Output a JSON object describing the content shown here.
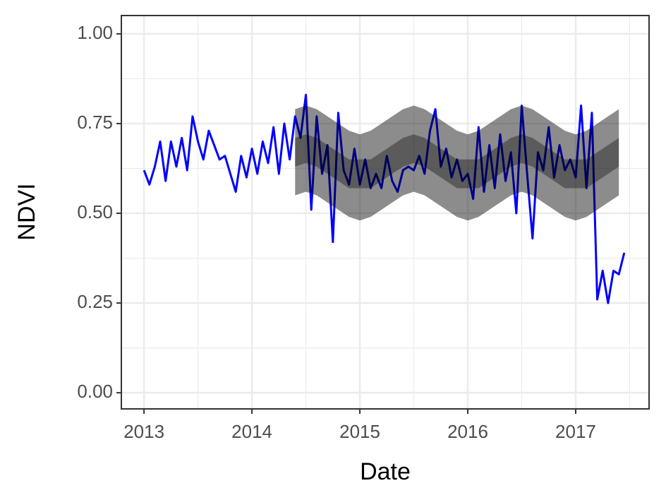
{
  "chart_data": {
    "type": "line",
    "x_label": "Date",
    "y_label": "NDVI",
    "xlim": [
      2012.79,
      2017.68
    ],
    "ylim": [
      -0.045,
      1.051
    ],
    "xticks": [
      2013,
      2014,
      2015,
      2016,
      2017
    ],
    "xminor": [
      2013.5,
      2014.5,
      2015.5,
      2016.5,
      2017.5
    ],
    "yticks": [
      {
        "value": 0,
        "label": "0.00"
      },
      {
        "value": 0.25,
        "label": "0.25"
      },
      {
        "value": 0.5,
        "label": "0.50"
      },
      {
        "value": 0.75,
        "label": "0.75"
      },
      {
        "value": 1,
        "label": "1.00"
      }
    ],
    "yminor": [
      0.125,
      0.375,
      0.625,
      0.875
    ],
    "grid": true,
    "x": [
      2013.0,
      2013.05,
      2013.1,
      2013.15,
      2013.2,
      2013.25,
      2013.3,
      2013.35,
      2013.4,
      2013.45,
      2013.5,
      2013.55,
      2013.6,
      2013.65,
      2013.7,
      2013.75,
      2013.8,
      2013.85,
      2013.9,
      2013.95,
      2014.0,
      2014.05,
      2014.1,
      2014.15,
      2014.2,
      2014.25,
      2014.3,
      2014.35,
      2014.4,
      2014.45,
      2014.5,
      2014.55,
      2014.6,
      2014.65,
      2014.7,
      2014.75,
      2014.8,
      2014.85,
      2014.9,
      2014.95,
      2015.0,
      2015.05,
      2015.1,
      2015.15,
      2015.2,
      2015.25,
      2015.3,
      2015.35,
      2015.4,
      2015.45,
      2015.5,
      2015.55,
      2015.6,
      2015.65,
      2015.7,
      2015.75,
      2015.8,
      2015.85,
      2015.9,
      2015.95,
      2016.0,
      2016.05,
      2016.1,
      2016.15,
      2016.2,
      2016.25,
      2016.3,
      2016.35,
      2016.4,
      2016.45,
      2016.5,
      2016.55,
      2016.6,
      2016.65,
      2016.7,
      2016.75,
      2016.8,
      2016.85,
      2016.9,
      2016.95,
      2017.0,
      2017.05,
      2017.1,
      2017.15,
      2017.2,
      2017.25,
      2017.3,
      2017.35,
      2017.4,
      2017.45
    ],
    "series": [
      {
        "color": "#0000ff",
        "values": [
          0.62,
          0.58,
          0.63,
          0.7,
          0.59,
          0.7,
          0.63,
          0.71,
          0.62,
          0.77,
          0.7,
          0.65,
          0.73,
          0.69,
          0.65,
          0.66,
          0.61,
          0.56,
          0.66,
          0.6,
          0.68,
          0.61,
          0.7,
          0.64,
          0.74,
          0.61,
          0.75,
          0.65,
          0.77,
          0.71,
          0.83,
          0.51,
          0.77,
          0.61,
          0.69,
          0.42,
          0.78,
          0.62,
          0.58,
          0.68,
          0.58,
          0.65,
          0.57,
          0.61,
          0.57,
          0.66,
          0.59,
          0.56,
          0.62,
          0.63,
          0.62,
          0.66,
          0.61,
          0.73,
          0.79,
          0.63,
          0.68,
          0.6,
          0.65,
          0.59,
          0.61,
          0.54,
          0.74,
          0.56,
          0.69,
          0.57,
          0.72,
          0.59,
          0.67,
          0.5,
          0.8,
          0.61,
          0.43,
          0.67,
          0.62,
          0.74,
          0.6,
          0.69,
          0.62,
          0.65,
          0.6,
          0.8,
          0.57,
          0.78,
          0.26,
          0.34,
          0.25,
          0.34,
          0.33,
          0.39
        ]
      }
    ],
    "bands": [
      {
        "color": "#000000",
        "opacity": 0.45,
        "x": [
          2014.4,
          2014.5,
          2014.6,
          2014.7,
          2014.8,
          2014.9,
          2015.0,
          2015.1,
          2015.2,
          2015.3,
          2015.4,
          2015.5,
          2015.6,
          2015.7,
          2015.8,
          2015.9,
          2016.0,
          2016.1,
          2016.2,
          2016.3,
          2016.4,
          2016.5,
          2016.6,
          2016.7,
          2016.8,
          2016.9,
          2017.0,
          2017.1,
          2017.2,
          2017.3,
          2017.4
        ],
        "upper": [
          0.79,
          0.8,
          0.79,
          0.77,
          0.75,
          0.73,
          0.72,
          0.73,
          0.75,
          0.77,
          0.79,
          0.8,
          0.79,
          0.77,
          0.75,
          0.73,
          0.72,
          0.73,
          0.75,
          0.77,
          0.79,
          0.8,
          0.79,
          0.77,
          0.75,
          0.73,
          0.72,
          0.73,
          0.75,
          0.77,
          0.79
        ],
        "lower": [
          0.55,
          0.56,
          0.55,
          0.53,
          0.51,
          0.49,
          0.48,
          0.49,
          0.51,
          0.53,
          0.55,
          0.56,
          0.55,
          0.53,
          0.51,
          0.49,
          0.48,
          0.49,
          0.51,
          0.53,
          0.55,
          0.56,
          0.55,
          0.53,
          0.51,
          0.49,
          0.48,
          0.49,
          0.51,
          0.53,
          0.55
        ]
      },
      {
        "color": "#000000",
        "opacity": 0.35,
        "x": [
          2014.4,
          2014.5,
          2014.6,
          2014.7,
          2014.8,
          2014.9,
          2015.0,
          2015.1,
          2015.2,
          2015.3,
          2015.4,
          2015.5,
          2015.6,
          2015.7,
          2015.8,
          2015.9,
          2016.0,
          2016.1,
          2016.2,
          2016.3,
          2016.4,
          2016.5,
          2016.6,
          2016.7,
          2016.8,
          2016.9,
          2017.0,
          2017.1,
          2017.2,
          2017.3,
          2017.4
        ],
        "upper": [
          0.71,
          0.72,
          0.71,
          0.69,
          0.67,
          0.65,
          0.65,
          0.65,
          0.67,
          0.69,
          0.71,
          0.72,
          0.71,
          0.69,
          0.67,
          0.65,
          0.65,
          0.65,
          0.67,
          0.69,
          0.71,
          0.72,
          0.71,
          0.69,
          0.67,
          0.65,
          0.65,
          0.65,
          0.67,
          0.69,
          0.71
        ],
        "lower": [
          0.63,
          0.64,
          0.63,
          0.61,
          0.59,
          0.57,
          0.57,
          0.57,
          0.59,
          0.61,
          0.63,
          0.64,
          0.63,
          0.61,
          0.59,
          0.57,
          0.57,
          0.57,
          0.59,
          0.61,
          0.63,
          0.64,
          0.63,
          0.61,
          0.59,
          0.57,
          0.57,
          0.57,
          0.59,
          0.61,
          0.63
        ]
      }
    ]
  }
}
